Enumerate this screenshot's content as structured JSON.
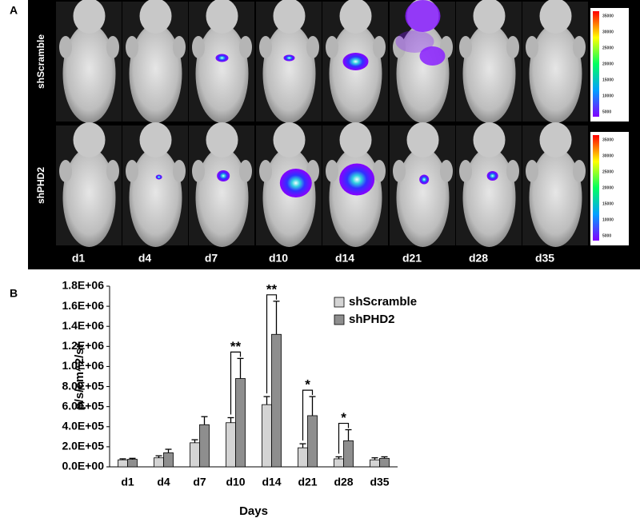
{
  "panel_a": {
    "label": "A",
    "rows": [
      "shScramble",
      "shPHD2"
    ],
    "days": [
      "d1",
      "d4",
      "d7",
      "d10",
      "d14",
      "d21",
      "d28",
      "d35"
    ],
    "colorbar_ticks": [
      "35000",
      "30000",
      "25000",
      "20000",
      "15000",
      "10000",
      "5000"
    ]
  },
  "chart_data": {
    "type": "bar",
    "panel_label": "B",
    "categories": [
      "d1",
      "d4",
      "d7",
      "d10",
      "d14",
      "d21",
      "d28",
      "d35"
    ],
    "xlabel": "Days",
    "ylabel": "p/s/cm^2/sr",
    "ylim": [
      0,
      1800000
    ],
    "yticks": [
      {
        "value": 0,
        "label": "0.0E+00"
      },
      {
        "value": 200000,
        "label": "2.0E+05"
      },
      {
        "value": 400000,
        "label": "4.0E+05"
      },
      {
        "value": 600000,
        "label": "6.0E+05"
      },
      {
        "value": 800000,
        "label": "8.0E+05"
      },
      {
        "value": 1000000,
        "label": "1.0E+06"
      },
      {
        "value": 1200000,
        "label": "1.2E+06"
      },
      {
        "value": 1400000,
        "label": "1.4E+06"
      },
      {
        "value": 1600000,
        "label": "1.6E+06"
      },
      {
        "value": 1800000,
        "label": "1.8E+06"
      }
    ],
    "series": [
      {
        "name": "shScramble",
        "color": "#d4d4d4",
        "values": [
          70000,
          90000,
          240000,
          440000,
          620000,
          190000,
          80000,
          70000
        ],
        "errors": [
          10000,
          20000,
          30000,
          50000,
          80000,
          40000,
          20000,
          20000
        ]
      },
      {
        "name": "shPHD2",
        "color": "#8e8e8e",
        "values": [
          75000,
          140000,
          420000,
          880000,
          1320000,
          510000,
          260000,
          85000
        ],
        "errors": [
          10000,
          35000,
          80000,
          200000,
          330000,
          190000,
          110000,
          15000
        ]
      }
    ],
    "annotations": [
      {
        "category": "d10",
        "text": "**"
      },
      {
        "category": "d14",
        "text": "**"
      },
      {
        "category": "d21",
        "text": "*"
      },
      {
        "category": "d28",
        "text": "*"
      }
    ],
    "legend": "upper right"
  }
}
